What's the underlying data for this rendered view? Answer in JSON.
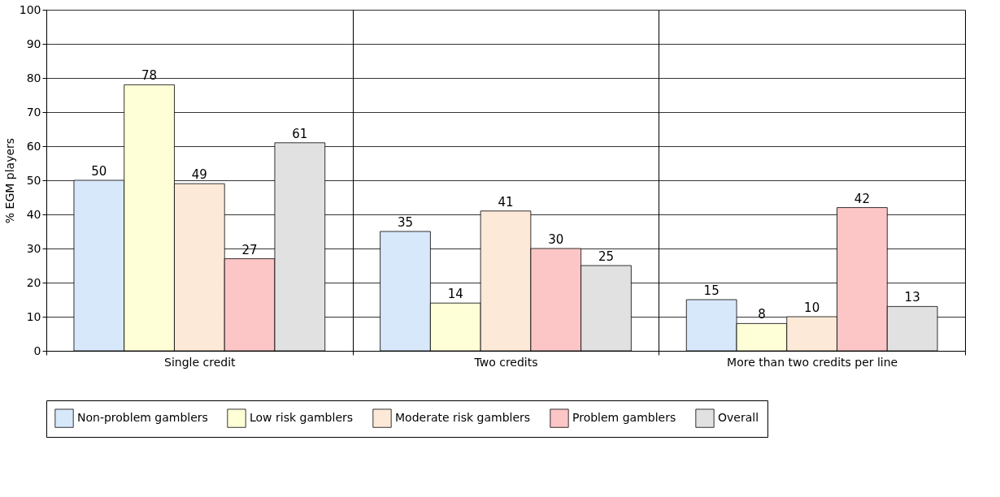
{
  "chart_data": {
    "type": "bar",
    "ylabel": "% EGM players",
    "categories": [
      "Single credit",
      "Two credits",
      "More than two credits per line"
    ],
    "series": [
      {
        "name": "Non-problem gamblers",
        "color": "#d7e8fb",
        "values": [
          50,
          35,
          15
        ]
      },
      {
        "name": "Low risk gamblers",
        "color": "#ffffd7",
        "values": [
          78,
          14,
          8
        ]
      },
      {
        "name": "Moderate risk gamblers",
        "color": "#fde9d8",
        "values": [
          49,
          41,
          10
        ]
      },
      {
        "name": "Problem gamblers",
        "color": "#fcc6c6",
        "values": [
          27,
          30,
          42
        ]
      },
      {
        "name": "Overall",
        "color": "#e1e1e1",
        "values": [
          61,
          25,
          13
        ]
      }
    ],
    "ylim": [
      0,
      100
    ],
    "yticks": [
      0,
      10,
      20,
      30,
      40,
      50,
      60,
      70,
      80,
      90,
      100
    ],
    "grid": true,
    "data_labels": true,
    "legend": "bottom"
  }
}
